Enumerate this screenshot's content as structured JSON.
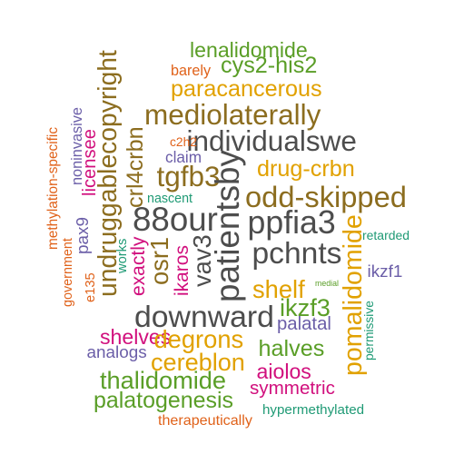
{
  "palette": {
    "dark_gray": "#4d4d4d",
    "brown": "#8c6d1f",
    "gold": "#e1a100",
    "green": "#5a9e27",
    "orange": "#e0621a",
    "magenta": "#d10f7d",
    "purple": "#6b5ea8",
    "teal": "#1f9a75"
  },
  "words": [
    {
      "text": "lenalidomide"
    },
    {
      "text": "barely"
    },
    {
      "text": "cys2-his2"
    },
    {
      "text": "paracancerous"
    },
    {
      "text": "undruggablecopyright"
    },
    {
      "text": "mediolaterally"
    },
    {
      "text": "crl4crbn"
    },
    {
      "text": "individualswe"
    },
    {
      "text": "c2h2"
    },
    {
      "text": "claim"
    },
    {
      "text": "tgfb3"
    },
    {
      "text": "drug-crbn"
    },
    {
      "text": "noninvasive"
    },
    {
      "text": "licensee"
    },
    {
      "text": "methylation-specific"
    },
    {
      "text": "patientsby"
    },
    {
      "text": "nascent"
    },
    {
      "text": "odd-skipped"
    },
    {
      "text": "88our"
    },
    {
      "text": "ppfia3"
    },
    {
      "text": "pax9"
    },
    {
      "text": "government"
    },
    {
      "text": "works"
    },
    {
      "text": "exactly"
    },
    {
      "text": "osr1"
    },
    {
      "text": "vav3"
    },
    {
      "text": "pchnts"
    },
    {
      "text": "retarded"
    },
    {
      "text": "pomalidomide"
    },
    {
      "text": "ikaros"
    },
    {
      "text": "e135"
    },
    {
      "text": "ikzf1"
    },
    {
      "text": "shelf"
    },
    {
      "text": "medial"
    },
    {
      "text": "ikzf3"
    },
    {
      "text": "downward"
    },
    {
      "text": "palatal"
    },
    {
      "text": "permissive"
    },
    {
      "text": "shelves"
    },
    {
      "text": "degrons"
    },
    {
      "text": "analogs"
    },
    {
      "text": "halves"
    },
    {
      "text": "cereblon"
    },
    {
      "text": "aiolos"
    },
    {
      "text": "thalidomide"
    },
    {
      "text": "symmetric"
    },
    {
      "text": "palatogenesis"
    },
    {
      "text": "hypermethylated"
    },
    {
      "text": "therapeutically"
    }
  ]
}
